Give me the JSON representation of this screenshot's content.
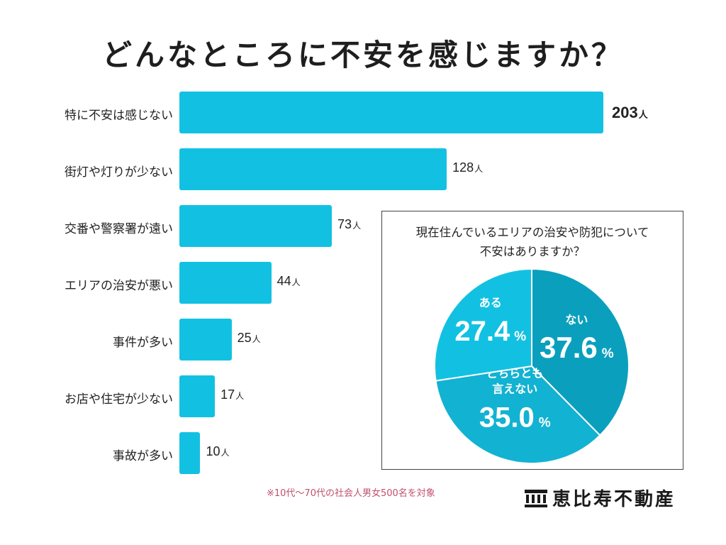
{
  "title": "どんなところに不安を感じますか？",
  "unit": "人",
  "chart_data": [
    {
      "type": "bar",
      "orientation": "horizontal",
      "title": "どんなところに不安を感じますか？",
      "categories": [
        "特に不安は感じない",
        "街灯や灯りが少ない",
        "交番や警察署が遠い",
        "エリアの治安が悪い",
        "事件が多い",
        "お店や住宅が少ない",
        "事故が多い"
      ],
      "values": [
        203,
        128,
        73,
        44,
        25,
        17,
        10
      ],
      "value_unit": "人",
      "color": "#12c1e2",
      "xlim": [
        0,
        203
      ]
    },
    {
      "type": "pie",
      "title_lines": [
        "現在住んでいるエリアの治安や防犯について",
        "不安はありますか？"
      ],
      "slices": [
        {
          "label": "ない",
          "value": 37.6,
          "display": "37.6",
          "color": "#0aa0bd"
        },
        {
          "label_lines": [
            "どちらとも",
            "言えない"
          ],
          "value": 35.0,
          "display": "35.0",
          "color": "#12b2d2"
        },
        {
          "label": "ある",
          "value": 27.4,
          "display": "27.4",
          "color": "#12c1e2"
        }
      ],
      "percent_sign": "%"
    }
  ],
  "footnote": "※10代〜70代の社会人男女500名を対象",
  "logo": {
    "text": "恵比寿不動産",
    "icon": "building-logo-icon"
  }
}
